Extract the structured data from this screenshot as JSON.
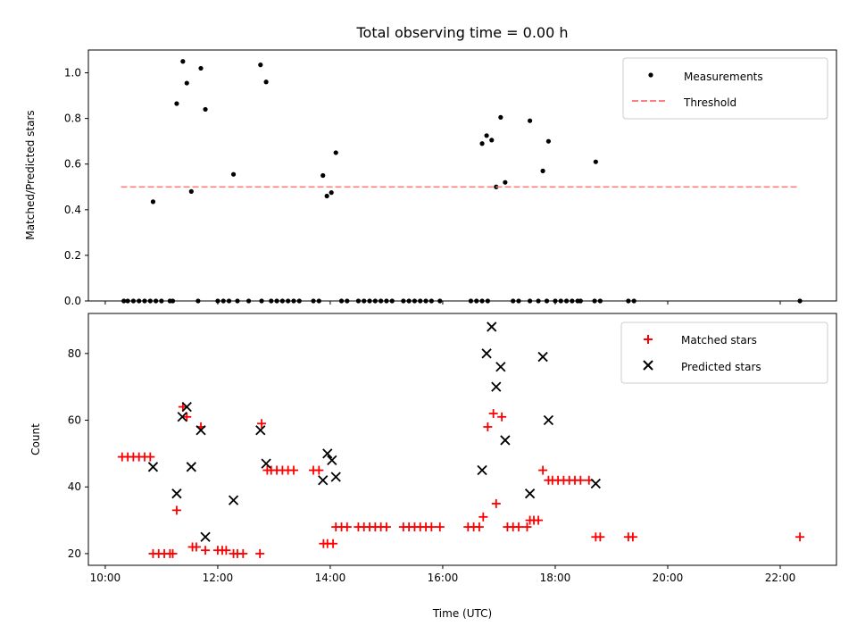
{
  "chart_data": [
    {
      "type": "scatter",
      "title": "Total observing time = 0.00 h",
      "xlabel": "",
      "ylabel": "Matched/Predicted stars",
      "xlim": [
        9.7,
        23.0
      ],
      "ylim": [
        0.0,
        1.1
      ],
      "y_ticks": [
        0.0,
        0.2,
        0.4,
        0.6,
        0.8,
        1.0
      ],
      "y_tick_labels": [
        "0.0",
        "0.2",
        "0.4",
        "0.6",
        "0.8",
        "1.0"
      ],
      "x_ticks": [
        10,
        12,
        14,
        16,
        18,
        20,
        22
      ],
      "grid": false,
      "legend_position": "top-right",
      "series": [
        {
          "name": "Measurements",
          "color": "#000000",
          "marker": "dot",
          "points": [
            [
              10.33,
              0
            ],
            [
              10.4,
              0
            ],
            [
              10.5,
              0
            ],
            [
              10.6,
              0
            ],
            [
              10.7,
              0
            ],
            [
              10.8,
              0
            ],
            [
              10.9,
              0
            ],
            [
              11.0,
              0
            ],
            [
              11.15,
              0
            ],
            [
              11.2,
              0
            ],
            [
              11.65,
              0
            ],
            [
              12.0,
              0
            ],
            [
              12.1,
              0
            ],
            [
              12.2,
              0
            ],
            [
              12.35,
              0
            ],
            [
              12.55,
              0
            ],
            [
              12.78,
              0
            ],
            [
              12.95,
              0
            ],
            [
              13.05,
              0
            ],
            [
              13.15,
              0
            ],
            [
              13.25,
              0
            ],
            [
              13.35,
              0
            ],
            [
              13.45,
              0
            ],
            [
              13.7,
              0
            ],
            [
              13.8,
              0
            ],
            [
              14.2,
              0
            ],
            [
              14.3,
              0
            ],
            [
              14.5,
              0
            ],
            [
              14.6,
              0
            ],
            [
              14.7,
              0
            ],
            [
              14.8,
              0
            ],
            [
              14.9,
              0
            ],
            [
              15.0,
              0
            ],
            [
              15.1,
              0
            ],
            [
              15.3,
              0
            ],
            [
              15.4,
              0
            ],
            [
              15.5,
              0
            ],
            [
              15.6,
              0
            ],
            [
              15.7,
              0
            ],
            [
              15.8,
              0
            ],
            [
              15.95,
              0
            ],
            [
              16.5,
              0
            ],
            [
              16.6,
              0
            ],
            [
              16.7,
              0
            ],
            [
              16.8,
              0
            ],
            [
              17.25,
              0
            ],
            [
              17.35,
              0
            ],
            [
              17.55,
              0
            ],
            [
              17.7,
              0
            ],
            [
              17.85,
              0
            ],
            [
              18.0,
              0
            ],
            [
              18.1,
              0
            ],
            [
              18.2,
              0
            ],
            [
              18.3,
              0
            ],
            [
              18.4,
              0
            ],
            [
              18.45,
              0
            ],
            [
              18.7,
              0
            ],
            [
              18.8,
              0
            ],
            [
              19.3,
              0
            ],
            [
              19.4,
              0
            ],
            [
              22.35,
              0
            ],
            [
              10.85,
              0.435
            ],
            [
              11.27,
              0.865
            ],
            [
              11.38,
              1.05
            ],
            [
              11.45,
              0.955
            ],
            [
              11.53,
              0.48
            ],
            [
              11.7,
              1.02
            ],
            [
              11.78,
              0.84
            ],
            [
              12.28,
              0.555
            ],
            [
              12.76,
              1.035
            ],
            [
              12.86,
              0.96
            ],
            [
              13.87,
              0.55
            ],
            [
              13.94,
              0.46
            ],
            [
              14.02,
              0.475
            ],
            [
              14.1,
              0.65
            ],
            [
              16.7,
              0.69
            ],
            [
              16.78,
              0.725
            ],
            [
              16.87,
              0.705
            ],
            [
              16.95,
              0.5
            ],
            [
              17.03,
              0.805
            ],
            [
              17.11,
              0.52
            ],
            [
              17.55,
              0.79
            ],
            [
              17.78,
              0.57
            ],
            [
              17.88,
              0.7
            ],
            [
              18.72,
              0.61
            ]
          ]
        },
        {
          "name": "Threshold",
          "color": "#ff7f7f",
          "linestyle": "dashed",
          "x": [
            10.28,
            22.33
          ],
          "y": [
            0.5,
            0.5
          ]
        }
      ]
    },
    {
      "type": "scatter",
      "title": "",
      "xlabel": "Time (UTC)",
      "ylabel": "Count",
      "xlim": [
        9.7,
        23.0
      ],
      "ylim": [
        16.5,
        92.0
      ],
      "y_ticks": [
        20,
        40,
        60,
        80
      ],
      "y_tick_labels": [
        "20",
        "40",
        "60",
        "80"
      ],
      "x_ticks": [
        10,
        12,
        14,
        16,
        18,
        20,
        22
      ],
      "x_tick_labels": [
        "10:00",
        "12:00",
        "14:00",
        "16:00",
        "18:00",
        "20:00",
        "22:00"
      ],
      "grid": false,
      "legend_position": "top-right",
      "series": [
        {
          "name": "Matched stars",
          "color": "#ff0000",
          "marker": "plus",
          "points": [
            [
              10.3,
              49
            ],
            [
              10.4,
              49
            ],
            [
              10.5,
              49
            ],
            [
              10.6,
              49
            ],
            [
              10.7,
              49
            ],
            [
              10.8,
              49
            ],
            [
              10.85,
              20
            ],
            [
              10.95,
              20
            ],
            [
              11.05,
              20
            ],
            [
              11.15,
              20
            ],
            [
              11.2,
              20
            ],
            [
              11.27,
              33
            ],
            [
              11.38,
              64
            ],
            [
              11.45,
              61
            ],
            [
              11.55,
              22
            ],
            [
              11.62,
              22
            ],
            [
              11.7,
              58
            ],
            [
              11.78,
              21
            ],
            [
              12.0,
              21
            ],
            [
              12.08,
              21
            ],
            [
              12.15,
              21
            ],
            [
              12.28,
              20
            ],
            [
              12.35,
              20
            ],
            [
              12.45,
              20
            ],
            [
              12.75,
              20
            ],
            [
              12.78,
              59
            ],
            [
              12.88,
              45
            ],
            [
              12.95,
              45
            ],
            [
              13.05,
              45
            ],
            [
              13.15,
              45
            ],
            [
              13.25,
              45
            ],
            [
              13.35,
              45
            ],
            [
              13.7,
              45
            ],
            [
              13.8,
              45
            ],
            [
              13.88,
              23
            ],
            [
              13.95,
              23
            ],
            [
              14.05,
              23
            ],
            [
              14.1,
              28
            ],
            [
              14.2,
              28
            ],
            [
              14.3,
              28
            ],
            [
              14.5,
              28
            ],
            [
              14.6,
              28
            ],
            [
              14.7,
              28
            ],
            [
              14.8,
              28
            ],
            [
              14.9,
              28
            ],
            [
              15.0,
              28
            ],
            [
              15.3,
              28
            ],
            [
              15.4,
              28
            ],
            [
              15.5,
              28
            ],
            [
              15.6,
              28
            ],
            [
              15.7,
              28
            ],
            [
              15.8,
              28
            ],
            [
              15.95,
              28
            ],
            [
              16.45,
              28
            ],
            [
              16.55,
              28
            ],
            [
              16.65,
              28
            ],
            [
              16.72,
              31
            ],
            [
              16.8,
              58
            ],
            [
              16.9,
              62
            ],
            [
              16.95,
              35
            ],
            [
              17.05,
              61
            ],
            [
              17.15,
              28
            ],
            [
              17.25,
              28
            ],
            [
              17.35,
              28
            ],
            [
              17.5,
              28
            ],
            [
              17.55,
              30
            ],
            [
              17.62,
              30
            ],
            [
              17.7,
              30
            ],
            [
              17.78,
              45
            ],
            [
              17.88,
              42
            ],
            [
              17.95,
              42
            ],
            [
              18.05,
              42
            ],
            [
              18.15,
              42
            ],
            [
              18.25,
              42
            ],
            [
              18.35,
              42
            ],
            [
              18.45,
              42
            ],
            [
              18.6,
              42
            ],
            [
              18.72,
              25
            ],
            [
              18.8,
              25
            ],
            [
              19.3,
              25
            ],
            [
              19.38,
              25
            ],
            [
              22.35,
              25
            ]
          ]
        },
        {
          "name": "Predicted stars",
          "color": "#000000",
          "marker": "x",
          "points": [
            [
              10.85,
              46
            ],
            [
              11.27,
              38
            ],
            [
              11.37,
              61
            ],
            [
              11.45,
              64
            ],
            [
              11.53,
              46
            ],
            [
              11.7,
              57
            ],
            [
              11.78,
              25
            ],
            [
              12.28,
              36
            ],
            [
              12.76,
              57
            ],
            [
              12.86,
              47
            ],
            [
              13.87,
              42
            ],
            [
              13.95,
              50
            ],
            [
              14.03,
              48
            ],
            [
              14.1,
              43
            ],
            [
              16.7,
              45
            ],
            [
              16.78,
              80
            ],
            [
              16.87,
              88
            ],
            [
              16.95,
              70
            ],
            [
              17.03,
              76
            ],
            [
              17.11,
              54
            ],
            [
              17.55,
              38
            ],
            [
              17.78,
              79
            ],
            [
              17.88,
              60
            ],
            [
              18.72,
              41
            ]
          ]
        }
      ]
    }
  ]
}
